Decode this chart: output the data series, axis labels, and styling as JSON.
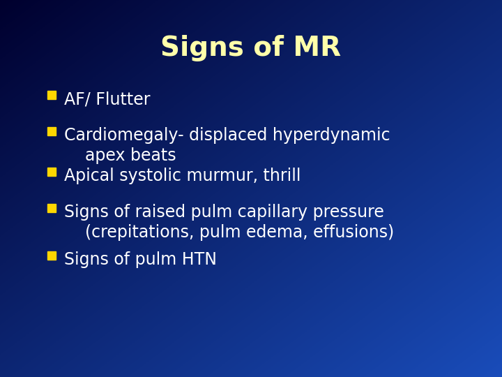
{
  "title": "Signs of MR",
  "title_color": "#FFFFAA",
  "title_fontsize": 28,
  "title_fontweight": "bold",
  "bullet_color": "#FFD700",
  "text_color": "#FFFFFF",
  "bullet_items": [
    [
      "AF/ Flutter"
    ],
    [
      "Cardiomegaly- displaced hyperdynamic",
      "    apex beats"
    ],
    [
      "Apical systolic murmur, thrill"
    ],
    [
      "Signs of raised pulm capillary pressure",
      "    (crepitations, pulm edema, effusions)"
    ],
    [
      "Signs of pulm HTN"
    ]
  ],
  "text_fontsize": 17,
  "figwidth": 7.2,
  "figheight": 5.4,
  "dpi": 100
}
